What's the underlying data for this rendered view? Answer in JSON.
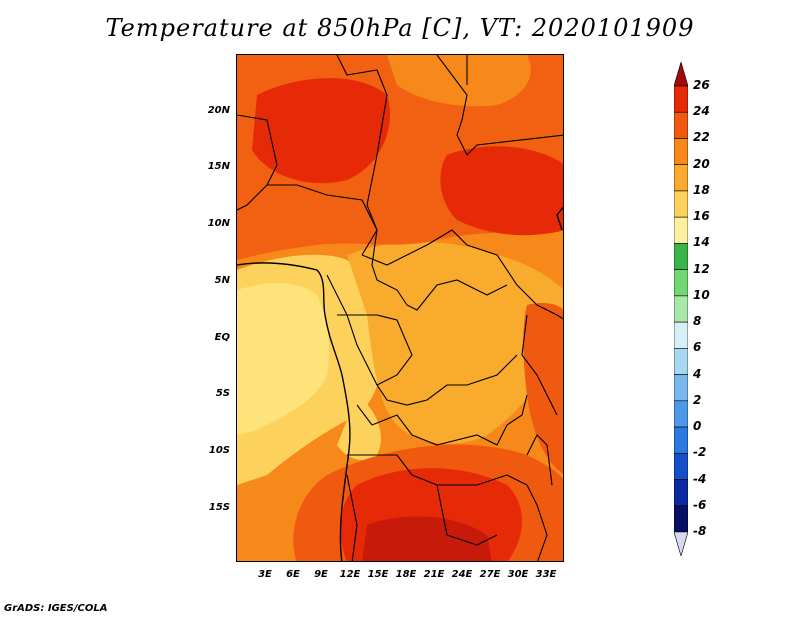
{
  "title": "Temperature at 850hPa [C], VT: 2020101909",
  "credit": "GrADS: IGES/COLA",
  "lat_labels": [
    "20N",
    "15N",
    "10N",
    "5N",
    "EQ",
    "5S",
    "10S",
    "15S"
  ],
  "lon_labels": [
    "3E",
    "6E",
    "9E",
    "12E",
    "15E",
    "18E",
    "21E",
    "24E",
    "27E",
    "30E",
    "33E"
  ],
  "colorbar": {
    "labels": [
      "26",
      "24",
      "22",
      "20",
      "18",
      "16",
      "14",
      "12",
      "10",
      "8",
      "6",
      "4",
      "2",
      "0",
      "-2",
      "-4",
      "-6",
      "-8"
    ],
    "colors": [
      "#a50a0a",
      "#e62a08",
      "#f05a10",
      "#f7891a",
      "#f9ab2d",
      "#fcd25c",
      "#fff0a0",
      "#3ab54a",
      "#72d672",
      "#a8e8a8",
      "#d6f0f8",
      "#a6d8f2",
      "#7ab8ee",
      "#4e98e8",
      "#2a78e0",
      "#1650c8",
      "#0b2aa0",
      "#071064",
      "#d8d8f0"
    ]
  },
  "chart_data": {
    "type": "heatmap",
    "title": "Temperature at 850hPa [C], VT: 2020101909",
    "variable": "Temperature at 850hPa",
    "units": "C",
    "valid_time": "2020101909",
    "lat_range": [
      -20,
      24
    ],
    "lon_range": [
      0,
      35
    ],
    "contour_levels": [
      -8,
      -6,
      -4,
      -2,
      0,
      2,
      4,
      6,
      8,
      10,
      12,
      14,
      16,
      18,
      20,
      22,
      24,
      26
    ],
    "observed_value_range": [
      14,
      26
    ]
  }
}
